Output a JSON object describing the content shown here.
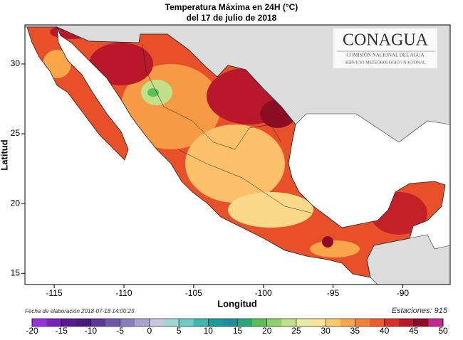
{
  "title": [
    "Temperatura Máxima en 24H (°C)",
    "del  17 de julio de 2018"
  ],
  "axes": {
    "xlabel": "Longitud",
    "ylabel": "Latitud",
    "xlim": [
      -117.1,
      -86.6
    ],
    "ylim": [
      14.2,
      32.8
    ],
    "xticks": [
      -115,
      -110,
      -105,
      -100,
      -95,
      -90
    ],
    "yticks": [
      15,
      20,
      25,
      30
    ]
  },
  "logo": {
    "name": "CONAGUA",
    "line1": "COMISIÓN NACIONAL DEL AGUA",
    "line2": "SERVICIO METEOROLÓGICO NACIONAL"
  },
  "footer": {
    "date": "Fecha de elaboración 2018-07-18 14:00:23",
    "stations": "Estaciones:  915"
  },
  "colorbar": {
    "ticks": [
      -20,
      -15,
      -10,
      -5,
      0,
      5,
      10,
      15,
      20,
      25,
      30,
      35,
      40,
      45,
      50
    ],
    "colors": [
      "#9b30d9",
      "#7a1fb8",
      "#5a1790",
      "#4b1a7e",
      "#5a3a96",
      "#6e5aa8",
      "#8a7ebd",
      "#a9a3cf",
      "#c7c7e0",
      "#9fd8d4",
      "#6fcbc3",
      "#40b8b0",
      "#1a9b9b",
      "#1e8fa0",
      "#2aa87a",
      "#5cbf5a",
      "#8fd16a",
      "#c2e08a",
      "#e7eda5",
      "#fbe39a",
      "#fbc870",
      "#f9a54a",
      "#f47f36",
      "#ec5a2a",
      "#d9302a",
      "#b8182a",
      "#8c0e24",
      "#c4288e"
    ]
  }
}
